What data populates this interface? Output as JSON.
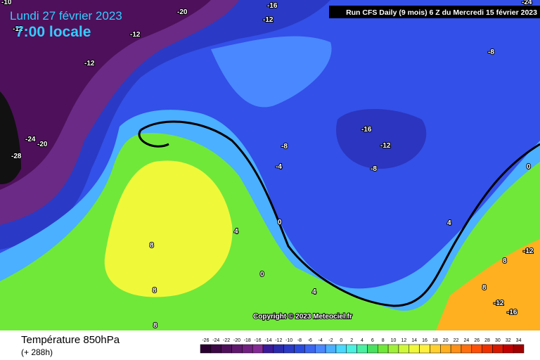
{
  "header": {
    "date": "Lundi 27 février 2023",
    "time": "7:00 locale",
    "run": "Run CFS Daily (9 mois) 6 Z du Mercredi 15 février 2023"
  },
  "map": {
    "contour_labels": [
      "-10",
      "-12",
      "-20",
      "-16",
      "-12",
      "-12",
      "-12",
      "-8",
      "-24",
      "-16",
      "-12",
      "-8",
      "-8",
      "-4",
      "0",
      "-24",
      "-20",
      "-28",
      "4",
      "0",
      "8",
      "4",
      "-12",
      "8",
      "0",
      "4",
      "8",
      "8",
      "-12",
      "-16",
      "8"
    ],
    "copyright": "Copyright © 2023 Meteociel.fr"
  },
  "footer": {
    "parameter": "Température 850hPa",
    "lead": "(+ 288h)"
  },
  "legend": {
    "labels": [
      "-26",
      "-24",
      "-22",
      "-20",
      "-18",
      "-16",
      "-14",
      "-12",
      "-10",
      "-8",
      "-6",
      "-4",
      "-2",
      "0",
      "2",
      "4",
      "6",
      "8",
      "10",
      "12",
      "14",
      "16",
      "18",
      "20",
      "22",
      "24",
      "26",
      "28",
      "30",
      "32",
      "34"
    ],
    "colors": [
      "#2a0030",
      "#3c0846",
      "#4e105a",
      "#60186e",
      "#722082",
      "#842a96",
      "#3a1a9a",
      "#2a2aae",
      "#2a3ac6",
      "#2a4ade",
      "#3a66f2",
      "#4a88ff",
      "#4ab0ff",
      "#4ad8ff",
      "#4af0e0",
      "#4af0a0",
      "#4ae060",
      "#70e83a",
      "#a0f03a",
      "#d0f83a",
      "#f0f83a",
      "#fff040",
      "#ffd030",
      "#ffb020",
      "#ff9018",
      "#ff7010",
      "#ff5008",
      "#f03000",
      "#d81800",
      "#c00000",
      "#a00000"
    ]
  }
}
